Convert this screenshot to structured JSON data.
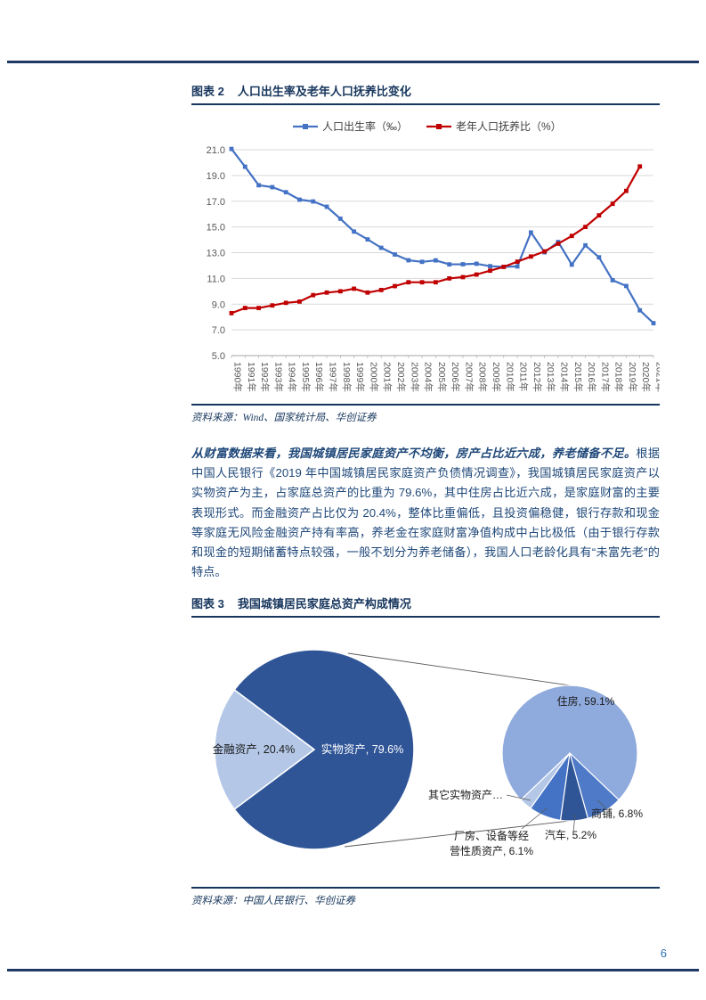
{
  "page": {
    "number": "6"
  },
  "figure2": {
    "label": "图表 2",
    "title": "人口出生率及老年人口抚养比变化",
    "source": "资料来源：Wind、国家统计局、华创证券"
  },
  "paragraph": {
    "lead": "从财富数据来看，我国城镇居民家庭资产不均衡，房产占比近六成，养老储备不足。",
    "rest": "根据中国人民银行《2019 年中国城镇居民家庭资产负债情况调查》，我国城镇居民家庭资产以实物资产为主，占家庭总资产的比重为 79.6%，其中住房占比近六成，是家庭财富的主要表现形式。而金融资产占比仅为 20.4%，整体比重偏低，且投资偏稳健，银行存款和现金等家庭无风险金融资产持有率高，养老金在家庭财富净值构成中占比极低（由于银行存款和现金的短期储蓄特点较强，一般不划分为养老储备），我国人口老龄化具有“未富先老”的特点。"
  },
  "figure3": {
    "label": "图表 3",
    "title": "我国城镇居民家庭总资产构成情况",
    "source": "资料来源：中国人民银行、华创证券"
  },
  "chart_data": [
    {
      "type": "line",
      "title": "人口出生率及老年人口抚养比变化",
      "categories": [
        "1990年",
        "1991年",
        "1992年",
        "1993年",
        "1994年",
        "1995年",
        "1996年",
        "1997年",
        "1998年",
        "1999年",
        "2000年",
        "2001年",
        "2002年",
        "2003年",
        "2004年",
        "2005年",
        "2006年",
        "2007年",
        "2008年",
        "2009年",
        "2010年",
        "2011年",
        "2012年",
        "2013年",
        "2014年",
        "2015年",
        "2016年",
        "2017年",
        "2018年",
        "2019年",
        "2020年",
        "2021年"
      ],
      "series": [
        {
          "name": "人口出生率（‰）",
          "color": "#4472C4",
          "values": [
            21.06,
            19.68,
            18.24,
            18.09,
            17.7,
            17.12,
            16.98,
            16.57,
            15.64,
            14.64,
            14.03,
            13.38,
            12.86,
            12.41,
            12.29,
            12.4,
            12.09,
            12.1,
            12.14,
            11.95,
            11.9,
            11.93,
            14.57,
            13.03,
            13.83,
            12.07,
            13.57,
            12.64,
            10.86,
            10.41,
            8.52,
            7.52
          ]
        },
        {
          "name": "老年人口抚养比（%）",
          "color": "#C00000",
          "values": [
            8.3,
            8.7,
            8.7,
            8.9,
            9.1,
            9.2,
            9.7,
            9.9,
            10.0,
            10.2,
            9.9,
            10.1,
            10.4,
            10.7,
            10.7,
            10.7,
            11.0,
            11.1,
            11.3,
            11.6,
            11.9,
            12.3,
            12.7,
            13.1,
            13.7,
            14.3,
            15.0,
            15.9,
            16.8,
            17.8,
            19.7,
            null
          ]
        }
      ],
      "ylim": [
        5,
        21
      ],
      "ytick_step": 2,
      "grid": true,
      "legend_position": "top",
      "xlabel": "",
      "ylabel": ""
    },
    {
      "type": "pie",
      "title": "我国城镇居民家庭总资产构成情况",
      "main": [
        {
          "name": "实物资产",
          "value": 79.6,
          "label": "实物资产, 79.6%",
          "color": "#2F5597",
          "text_color": "#FFFFFF"
        },
        {
          "name": "金融资产",
          "value": 20.4,
          "label": "金融资产, 20.4%",
          "color": "#B4C7E7",
          "text_color": "#1A1A1A"
        }
      ],
      "breakdown": [
        {
          "name": "住房",
          "value": 59.1,
          "label": "住房, 59.1%",
          "color": "#8FAADC"
        },
        {
          "name": "商铺",
          "value": 6.8,
          "label": "商铺, 6.8%",
          "color": "#4E7AC7"
        },
        {
          "name": "汽车",
          "value": 5.2,
          "label": "汽车, 5.2%",
          "color": "#2F5597"
        },
        {
          "name": "厂房、设备等经营性质资产",
          "value": 6.1,
          "label": "厂房、设备等经营性质资产, 6.1%",
          "color": "#4472C4"
        },
        {
          "name": "其它实物资产",
          "value": 2.4,
          "label": "其它实物资产…",
          "color": "#B4C7E7"
        }
      ]
    }
  ]
}
